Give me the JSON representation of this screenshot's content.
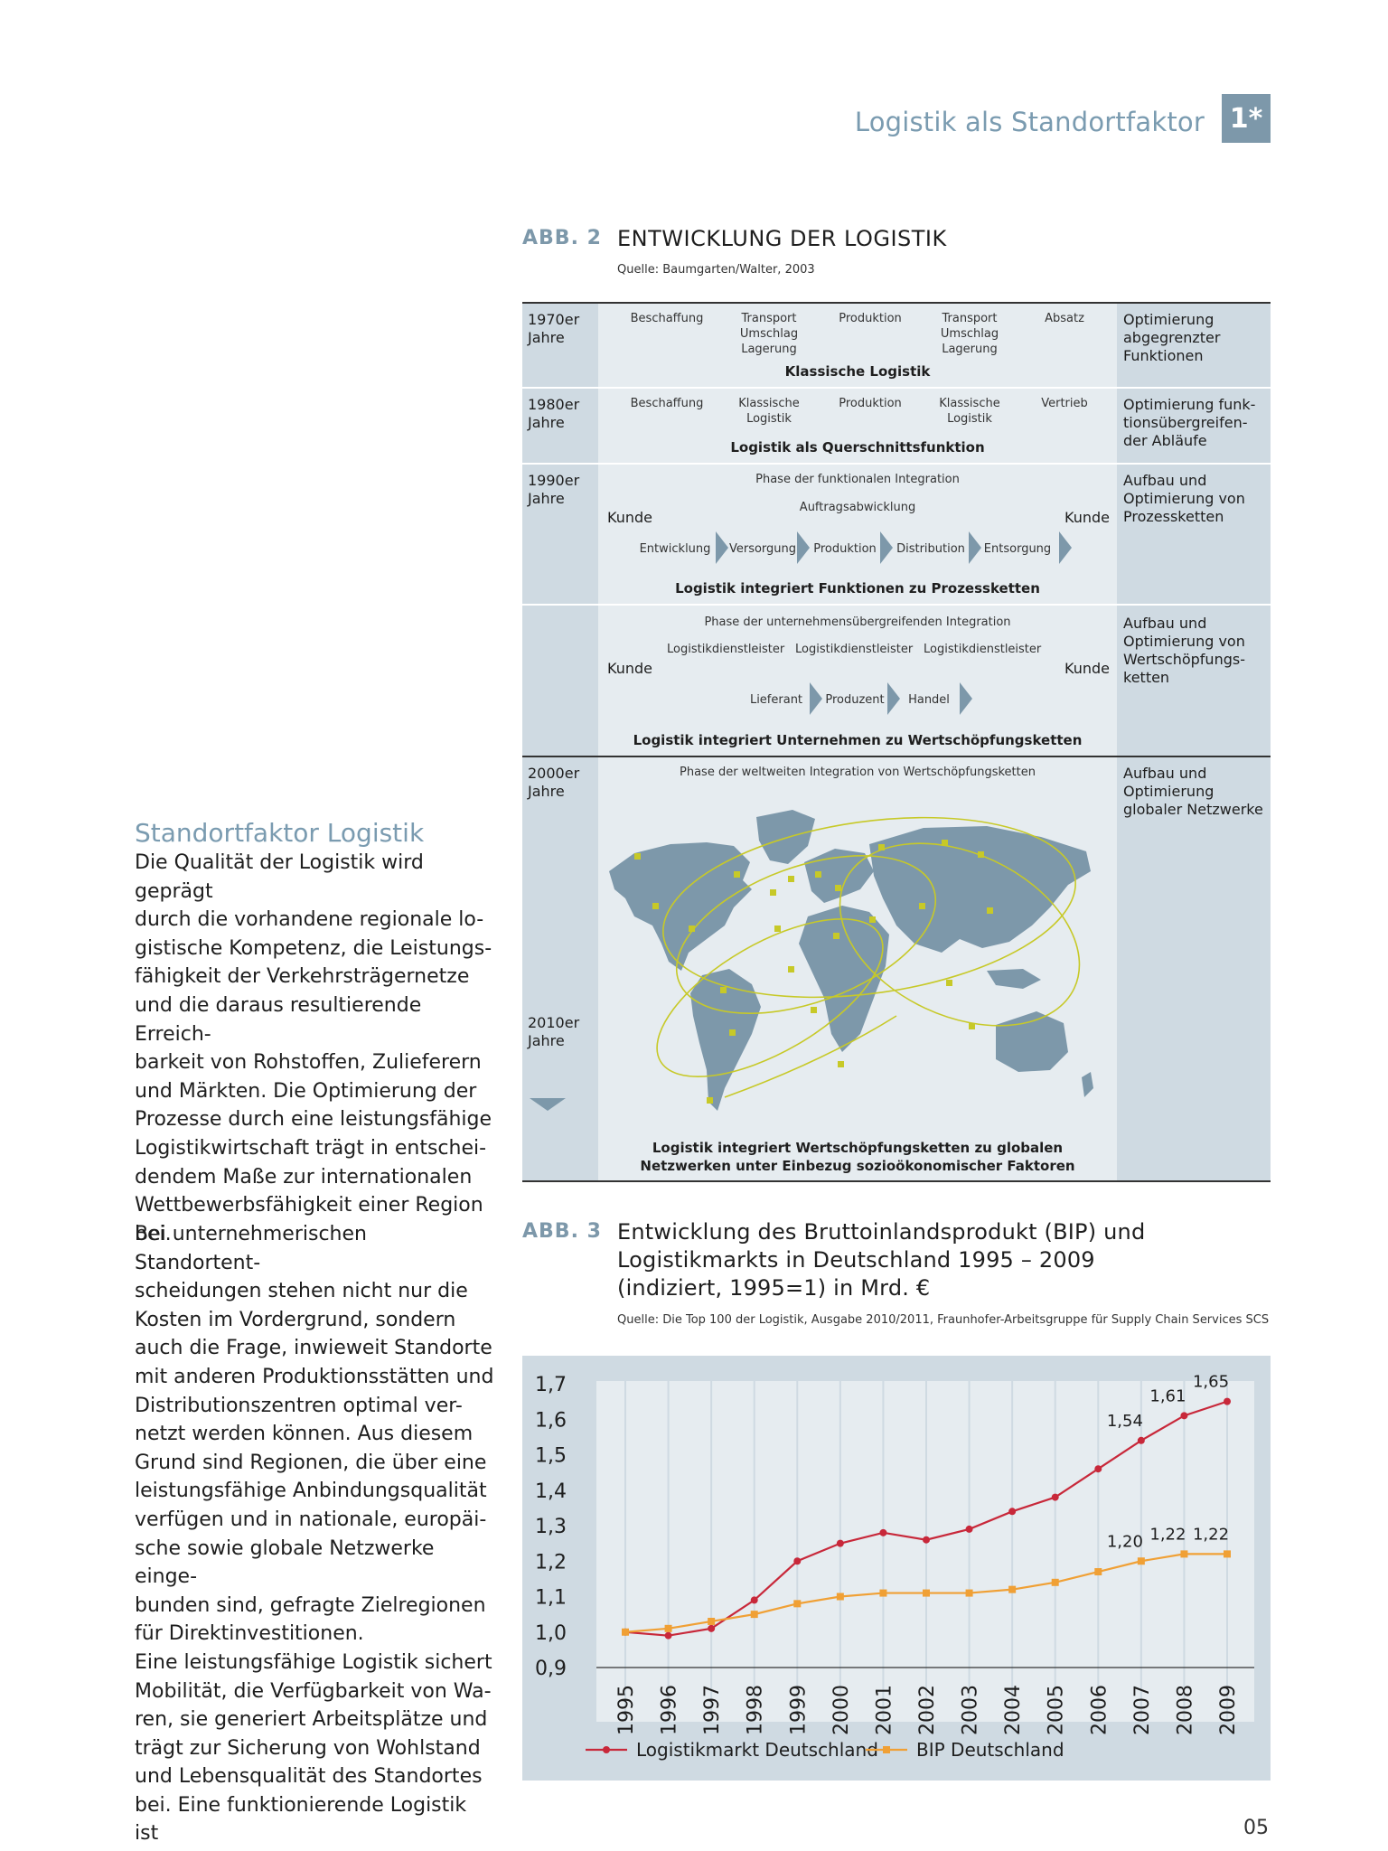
{
  "header": {
    "title": "Logistik als Standortfaktor",
    "badge": "1*"
  },
  "abb2": {
    "label": "ABB. 2",
    "title": "ENTWICKLUNG DER LOGISTIK",
    "source": "Quelle: Baumgarten/Walter, 2003",
    "rows": {
      "r1970": {
        "year": "1970er\nJahre",
        "items": [
          "Beschaffung",
          "Transport\nUmschlag\nLagerung",
          "Produktion",
          "Transport\nUmschlag\nLagerung",
          "Absatz"
        ],
        "caption": "Klassische Logistik",
        "right": "Optimierung abgegrenzter Funktionen"
      },
      "r1980": {
        "year": "1980er\nJahre",
        "items": [
          "Beschaffung",
          "Klassische\nLogistik",
          "Produktion",
          "Klassische\nLogistik",
          "Vertrieb"
        ],
        "caption": "Logistik als Querschnittsfunktion",
        "right": "Optimierung funk-tionsübergreifen-der Abläufe"
      },
      "r1990": {
        "year": "1990er\nJahre",
        "phase": "Phase der funktionalen Integration",
        "sub": "Auftragsabwicklung",
        "kunde_left": "Kunde",
        "kunde_right": "Kunde",
        "chain": [
          "Entwicklung",
          "Versorgung",
          "Produktion",
          "Distribution",
          "Entsorgung"
        ],
        "caption": "Logistik integriert Funktionen zu Prozessketten",
        "right": "Aufbau und Optimierung von Prozessketten"
      },
      "rscm": {
        "phase": "Phase der unternehmensübergreifenden Integration",
        "providers": [
          "Logistikdienstleister",
          "Logistikdienstleister",
          "Logistikdienstleister"
        ],
        "kunde_left": "Kunde",
        "kunde_right": "Kunde",
        "chain": [
          "Lieferant",
          "Produzent",
          "Handel"
        ],
        "caption": "Logistik integriert Unternehmen zu Wertschöpfungsketten",
        "right": "Aufbau und Optimierung von Wertschöpfungs-ketten"
      },
      "r2000": {
        "year": "2000er\nJahre",
        "year_end": "2010er\nJahre",
        "phase": "Phase der weltweiten Integration von Wertschöpfungsketten",
        "caption": "Logistik integriert Wertschöpfungsketten zu globalen\nNetzwerken unter Einbezug sozioökonomischer Faktoren",
        "right": "Aufbau und Optimierung globaler Netzwerke"
      }
    }
  },
  "abb3": {
    "label": "ABB. 3",
    "title": "Entwicklung des Bruttoinlandsprodukt (BIP) und\nLogistikmarkts in Deutschland 1995 – 2009\n(indiziert, 1995=1) in Mrd. €",
    "source": "Quelle: Die Top 100 der Logistik, Ausgabe 2010/2011, Fraunhofer-Arbeitsgruppe für Supply Chain Services SCS"
  },
  "chart_data": {
    "type": "line",
    "x": [
      "1995",
      "1996",
      "1997",
      "1998",
      "1999",
      "2000",
      "2001",
      "2002",
      "2003",
      "2004",
      "2005",
      "2006",
      "2007",
      "2008",
      "2009"
    ],
    "series": [
      {
        "name": "Logistikmarkt Deutschland",
        "color": "#c8283a",
        "values": [
          1.0,
          0.99,
          1.01,
          1.09,
          1.2,
          1.25,
          1.28,
          1.26,
          1.29,
          1.34,
          1.38,
          1.46,
          1.54,
          1.61,
          1.65
        ],
        "labels": {
          "2007": "1,54",
          "2008": "1,61",
          "2009": "1,65"
        }
      },
      {
        "name": "BIP Deutschland",
        "color": "#f0a035",
        "values": [
          1.0,
          1.01,
          1.03,
          1.05,
          1.08,
          1.1,
          1.11,
          1.11,
          1.11,
          1.12,
          1.14,
          1.17,
          1.2,
          1.22,
          1.22
        ],
        "labels": {
          "2007": "1,20",
          "2008": "1,22",
          "2009": "1,22"
        }
      }
    ],
    "yticks": [
      "1,7",
      "1,6",
      "1,5",
      "1,4",
      "1,3",
      "1,2",
      "1,1",
      "1,0",
      "0,9"
    ],
    "ylim": [
      0.9,
      1.7
    ],
    "grid": true,
    "legend": "bottom"
  },
  "sidebar": {
    "heading": "Standortfaktor Logistik",
    "para1": "Die Qualität der Logistik wird geprägt\ndurch die vorhandene regionale lo-\ngistische Kompetenz, die Leistungs-\nfähigkeit der Verkehrsträgernetze\nund die daraus resultierende Erreich-\nbarkeit von Rohstoffen, Zulieferern\nund Märkten. Die Optimierung der\nProzesse durch eine leistungsfähige\nLogistikwirtschaft trägt in entschei-\ndendem Maße zur internationalen\nWettbewerbsfähigkeit einer Region\nbei.",
    "para2": "Bei unternehmerischen Standortent-\nscheidungen stehen nicht nur die\nKosten im Vordergrund, sondern\nauch die Frage, inwieweit Standorte\nmit anderen Produktionsstätten und\nDistributionszentren optimal ver-\nnetzt werden können. Aus diesem\nGrund sind Regionen, die über eine\nleistungsfähige Anbindungsqualität\nverfügen und in nationale, europäi-\nsche sowie globale Netzwerke einge-\nbunden sind, gefragte Zielregionen\nfür Direktinvestitionen.\nEine leistungsfähige Logistik sichert\nMobilität, die Verfügbarkeit von Wa-\nren, sie generiert Arbeitsplätze und\nträgt zur Sicherung von Wohlstand\nund Lebensqualität des Standortes\nbei. Eine funktionierende Logistik ist\nsomit elementarer Standortfaktor."
  },
  "page_number": "05"
}
